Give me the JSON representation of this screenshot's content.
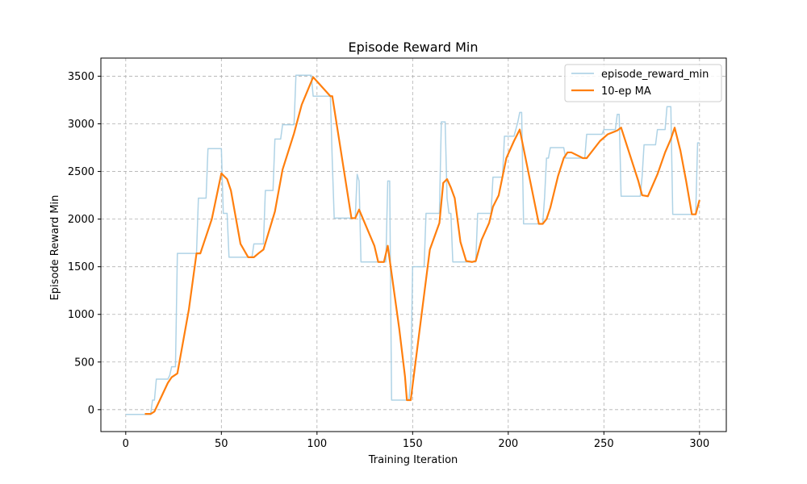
{
  "chart_data": {
    "type": "line",
    "title": "Episode Reward Min",
    "xlabel": "Training Iteration",
    "ylabel": "Episode Reward Min",
    "xlim": [
      -13,
      314
    ],
    "ylim": [
      -230,
      3690
    ],
    "xticks": [
      0,
      50,
      100,
      150,
      200,
      250,
      300
    ],
    "yticks": [
      0,
      500,
      1000,
      1500,
      2000,
      2500,
      3000,
      3500
    ],
    "grid": true,
    "legend_position": "top-right",
    "series": [
      {
        "name": "episode_reward_min",
        "color": "#a6cee3",
        "points": [
          [
            0,
            -50
          ],
          [
            13,
            -50
          ],
          [
            14,
            100
          ],
          [
            15,
            100
          ],
          [
            16,
            320
          ],
          [
            22,
            320
          ],
          [
            23,
            360
          ],
          [
            24,
            450
          ],
          [
            26,
            450
          ],
          [
            27,
            1640
          ],
          [
            37,
            1640
          ],
          [
            38,
            2220
          ],
          [
            42,
            2220
          ],
          [
            43,
            2740
          ],
          [
            50,
            2740
          ],
          [
            51,
            2060
          ],
          [
            53,
            2060
          ],
          [
            54,
            1600
          ],
          [
            66,
            1600
          ],
          [
            67,
            1740
          ],
          [
            72,
            1740
          ],
          [
            73,
            2300
          ],
          [
            77,
            2300
          ],
          [
            78,
            2840
          ],
          [
            81,
            2840
          ],
          [
            82,
            2990
          ],
          [
            88,
            2990
          ],
          [
            89,
            3510
          ],
          [
            97,
            3510
          ],
          [
            98,
            3290
          ],
          [
            107,
            3290
          ],
          [
            108,
            2600
          ],
          [
            109,
            2010
          ],
          [
            120,
            2010
          ],
          [
            121,
            2470
          ],
          [
            122,
            2400
          ],
          [
            123,
            1550
          ],
          [
            136,
            1550
          ],
          [
            137,
            2400
          ],
          [
            138,
            2400
          ],
          [
            139,
            100
          ],
          [
            148,
            100
          ],
          [
            149,
            300
          ],
          [
            150,
            1500
          ],
          [
            156,
            1500
          ],
          [
            157,
            2060
          ],
          [
            164,
            2060
          ],
          [
            165,
            3020
          ],
          [
            167,
            3020
          ],
          [
            168,
            2220
          ],
          [
            169,
            2060
          ],
          [
            170,
            2060
          ],
          [
            171,
            1550
          ],
          [
            183,
            1550
          ],
          [
            184,
            2060
          ],
          [
            191,
            2060
          ],
          [
            192,
            2440
          ],
          [
            197,
            2440
          ],
          [
            198,
            2870
          ],
          [
            203,
            2870
          ],
          [
            205,
            3020
          ],
          [
            206,
            3120
          ],
          [
            207,
            3120
          ],
          [
            208,
            1950
          ],
          [
            218,
            1950
          ],
          [
            219,
            2230
          ],
          [
            220,
            2640
          ],
          [
            221,
            2640
          ],
          [
            222,
            2750
          ],
          [
            229,
            2750
          ],
          [
            230,
            2640
          ],
          [
            240,
            2640
          ],
          [
            241,
            2890
          ],
          [
            249,
            2890
          ],
          [
            250,
            2940
          ],
          [
            256,
            2940
          ],
          [
            257,
            3100
          ],
          [
            258,
            3100
          ],
          [
            259,
            2240
          ],
          [
            269,
            2240
          ],
          [
            270,
            2450
          ],
          [
            271,
            2780
          ],
          [
            277,
            2780
          ],
          [
            278,
            2940
          ],
          [
            282,
            2940
          ],
          [
            283,
            3180
          ],
          [
            285,
            3180
          ],
          [
            286,
            2050
          ],
          [
            298,
            2050
          ],
          [
            299,
            2800
          ],
          [
            300,
            2800
          ]
        ]
      },
      {
        "name": "10-ep MA",
        "color": "#ff7f0e",
        "points": [
          [
            10,
            -45
          ],
          [
            13,
            -45
          ],
          [
            15,
            -20
          ],
          [
            22,
            280
          ],
          [
            24,
            340
          ],
          [
            27,
            380
          ],
          [
            33,
            1050
          ],
          [
            37,
            1640
          ],
          [
            39,
            1640
          ],
          [
            45,
            2000
          ],
          [
            50,
            2480
          ],
          [
            53,
            2420
          ],
          [
            55,
            2300
          ],
          [
            60,
            1740
          ],
          [
            64,
            1600
          ],
          [
            67,
            1600
          ],
          [
            70,
            1650
          ],
          [
            72,
            1680
          ],
          [
            78,
            2080
          ],
          [
            82,
            2520
          ],
          [
            88,
            2900
          ],
          [
            92,
            3200
          ],
          [
            98,
            3490
          ],
          [
            107,
            3290
          ],
          [
            108,
            3290
          ],
          [
            118,
            2010
          ],
          [
            120,
            2010
          ],
          [
            122,
            2100
          ],
          [
            130,
            1720
          ],
          [
            132,
            1550
          ],
          [
            135,
            1550
          ],
          [
            137,
            1720
          ],
          [
            143,
            850
          ],
          [
            146,
            350
          ],
          [
            147,
            100
          ],
          [
            149,
            100
          ],
          [
            155,
            1050
          ],
          [
            159,
            1680
          ],
          [
            164,
            1960
          ],
          [
            166,
            2380
          ],
          [
            168,
            2420
          ],
          [
            170,
            2330
          ],
          [
            172,
            2220
          ],
          [
            175,
            1760
          ],
          [
            178,
            1560
          ],
          [
            181,
            1550
          ],
          [
            183,
            1560
          ],
          [
            186,
            1780
          ],
          [
            190,
            1960
          ],
          [
            192,
            2130
          ],
          [
            195,
            2250
          ],
          [
            199,
            2640
          ],
          [
            203,
            2820
          ],
          [
            206,
            2940
          ],
          [
            216,
            1950
          ],
          [
            218,
            1950
          ],
          [
            220,
            2000
          ],
          [
            222,
            2120
          ],
          [
            226,
            2450
          ],
          [
            229,
            2640
          ],
          [
            231,
            2700
          ],
          [
            233,
            2700
          ],
          [
            239,
            2640
          ],
          [
            241,
            2640
          ],
          [
            248,
            2820
          ],
          [
            252,
            2890
          ],
          [
            257,
            2930
          ],
          [
            259,
            2960
          ],
          [
            268,
            2400
          ],
          [
            270,
            2250
          ],
          [
            273,
            2240
          ],
          [
            278,
            2470
          ],
          [
            282,
            2700
          ],
          [
            285,
            2840
          ],
          [
            287,
            2960
          ],
          [
            290,
            2720
          ],
          [
            293,
            2400
          ],
          [
            296,
            2050
          ],
          [
            298,
            2050
          ],
          [
            300,
            2200
          ]
        ]
      }
    ]
  }
}
